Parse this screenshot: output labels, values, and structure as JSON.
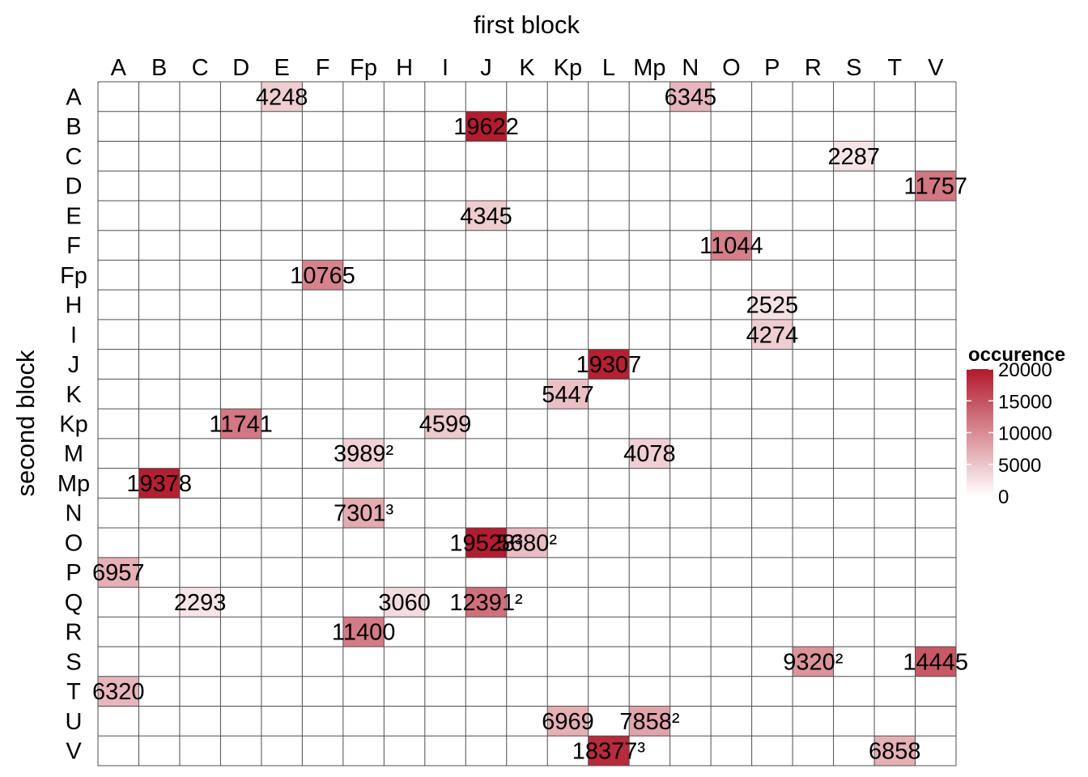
{
  "chart_data": {
    "type": "heatmap",
    "xlabel": "first block",
    "ylabel": "second block",
    "x_categories": [
      "A",
      "B",
      "C",
      "D",
      "E",
      "F",
      "Fp",
      "H",
      "I",
      "J",
      "K",
      "Kp",
      "L",
      "Mp",
      "N",
      "O",
      "P",
      "R",
      "S",
      "T",
      "V"
    ],
    "y_categories": [
      "A",
      "B",
      "C",
      "D",
      "E",
      "F",
      "Fp",
      "H",
      "I",
      "J",
      "K",
      "Kp",
      "M",
      "Mp",
      "N",
      "O",
      "P",
      "Q",
      "R",
      "S",
      "T",
      "U",
      "V"
    ],
    "cells": [
      {
        "x": "E",
        "y": "A",
        "value": 4248,
        "label": "4248"
      },
      {
        "x": "N",
        "y": "A",
        "value": 6345,
        "label": "6345"
      },
      {
        "x": "J",
        "y": "B",
        "value": 19622,
        "label": "19622"
      },
      {
        "x": "S",
        "y": "C",
        "value": 2287,
        "label": "2287"
      },
      {
        "x": "V",
        "y": "D",
        "value": 11757,
        "label": "11757"
      },
      {
        "x": "J",
        "y": "E",
        "value": 4345,
        "label": "4345"
      },
      {
        "x": "O",
        "y": "F",
        "value": 11044,
        "label": "11044"
      },
      {
        "x": "F",
        "y": "Fp",
        "value": 10765,
        "label": "10765"
      },
      {
        "x": "P",
        "y": "H",
        "value": 2525,
        "label": "2525"
      },
      {
        "x": "P",
        "y": "I",
        "value": 4274,
        "label": "4274"
      },
      {
        "x": "L",
        "y": "J",
        "value": 19307,
        "label": "19307"
      },
      {
        "x": "Kp",
        "y": "K",
        "value": 5447,
        "label": "5447"
      },
      {
        "x": "D",
        "y": "Kp",
        "value": 11741,
        "label": "11741"
      },
      {
        "x": "I",
        "y": "Kp",
        "value": 4599,
        "label": "4599"
      },
      {
        "x": "Fp",
        "y": "M",
        "value": 3989,
        "label": "3989²"
      },
      {
        "x": "Mp",
        "y": "M",
        "value": 4078,
        "label": "4078"
      },
      {
        "x": "B",
        "y": "Mp",
        "value": 19378,
        "label": "19378"
      },
      {
        "x": "Fp",
        "y": "N",
        "value": 7301,
        "label": "7301³"
      },
      {
        "x": "J",
        "y": "O",
        "value": 19528,
        "label": "19528³"
      },
      {
        "x": "K",
        "y": "O",
        "value": 5680,
        "label": "5680²"
      },
      {
        "x": "A",
        "y": "P",
        "value": 6957,
        "label": "6957"
      },
      {
        "x": "C",
        "y": "Q",
        "value": 2293,
        "label": "2293"
      },
      {
        "x": "H",
        "y": "Q",
        "value": 3060,
        "label": "3060"
      },
      {
        "x": "J",
        "y": "Q",
        "value": 12391,
        "label": "12391²"
      },
      {
        "x": "Fp",
        "y": "R",
        "value": 11400,
        "label": "11400"
      },
      {
        "x": "R",
        "y": "S",
        "value": 9320,
        "label": "9320²"
      },
      {
        "x": "V",
        "y": "S",
        "value": 14445,
        "label": "14445"
      },
      {
        "x": "A",
        "y": "T",
        "value": 6320,
        "label": "6320"
      },
      {
        "x": "Kp",
        "y": "U",
        "value": 6969,
        "label": "6969"
      },
      {
        "x": "Mp",
        "y": "U",
        "value": 7858,
        "label": "7858²"
      },
      {
        "x": "L",
        "y": "V",
        "value": 18377,
        "label": "18377³"
      },
      {
        "x": "T",
        "y": "V",
        "value": 6858,
        "label": "6858"
      }
    ],
    "color_scale": {
      "title": "occurence",
      "min": 0,
      "max": 20000,
      "low_color": "#ffffff",
      "high_color": "#b2182b",
      "ticks": [
        0,
        5000,
        10000,
        15000,
        20000
      ]
    },
    "grid": true,
    "x_axis_position": "top",
    "legend": "right"
  }
}
